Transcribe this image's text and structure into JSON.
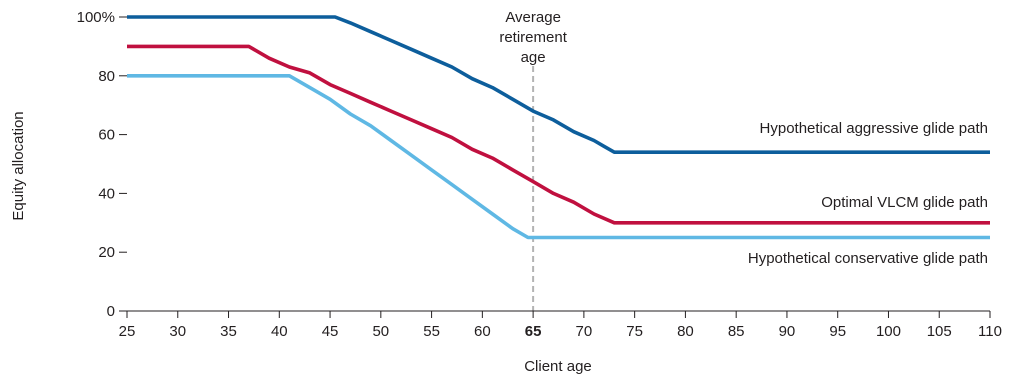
{
  "chart_data": {
    "type": "line",
    "title": "",
    "xlabel": "Client age",
    "ylabel": "Equity allocation",
    "xlim": [
      25,
      110
    ],
    "ylim": [
      0,
      100
    ],
    "x_ticks": [
      "25",
      "30",
      "35",
      "40",
      "45",
      "50",
      "55",
      "60",
      "65",
      "70",
      "75",
      "80",
      "85",
      "90",
      "95",
      "100",
      "105",
      "110"
    ],
    "x_tick_bold": "65",
    "y_ticks": [
      "0",
      "20",
      "40",
      "60",
      "80",
      "100%"
    ],
    "grid": false,
    "series": [
      {
        "name": "Hypothetical aggressive glide path",
        "color": "#0d5e9c",
        "points": [
          [
            25,
            100
          ],
          [
            45.5,
            100
          ],
          [
            47,
            98
          ],
          [
            49,
            95
          ],
          [
            51,
            92
          ],
          [
            53,
            89
          ],
          [
            55,
            86
          ],
          [
            57,
            83
          ],
          [
            59,
            79
          ],
          [
            61,
            76
          ],
          [
            63,
            72
          ],
          [
            65,
            68
          ],
          [
            67,
            65
          ],
          [
            69,
            61
          ],
          [
            71,
            58
          ],
          [
            72,
            56
          ],
          [
            73,
            54
          ],
          [
            110,
            54
          ]
        ]
      },
      {
        "name": "Optimal VLCM glide path",
        "color": "#c0103f",
        "points": [
          [
            25,
            90
          ],
          [
            37,
            90
          ],
          [
            39,
            86
          ],
          [
            41,
            83
          ],
          [
            43,
            81
          ],
          [
            45,
            77
          ],
          [
            47,
            74
          ],
          [
            49,
            71
          ],
          [
            51,
            68
          ],
          [
            53,
            65
          ],
          [
            55,
            62
          ],
          [
            57,
            59
          ],
          [
            59,
            55
          ],
          [
            61,
            52
          ],
          [
            63,
            48
          ],
          [
            65,
            44
          ],
          [
            67,
            40
          ],
          [
            69,
            37
          ],
          [
            71,
            33
          ],
          [
            73,
            30
          ],
          [
            110,
            30
          ]
        ]
      },
      {
        "name": "Hypothetical conservative glide path",
        "color": "#5fb8e4",
        "points": [
          [
            25,
            80
          ],
          [
            41,
            80
          ],
          [
            43,
            76
          ],
          [
            45,
            72
          ],
          [
            47,
            67
          ],
          [
            49,
            63
          ],
          [
            51,
            58
          ],
          [
            53,
            53
          ],
          [
            55,
            48
          ],
          [
            57,
            43
          ],
          [
            59,
            38
          ],
          [
            61,
            33
          ],
          [
            63,
            28
          ],
          [
            64.5,
            25
          ],
          [
            110,
            25
          ]
        ]
      }
    ],
    "annotations": [
      {
        "name": "average-retirement-age",
        "x": 65,
        "lines": [
          "Average",
          "retirement",
          "age"
        ],
        "style": "dashed",
        "color": "#b3b3b3"
      }
    ]
  }
}
